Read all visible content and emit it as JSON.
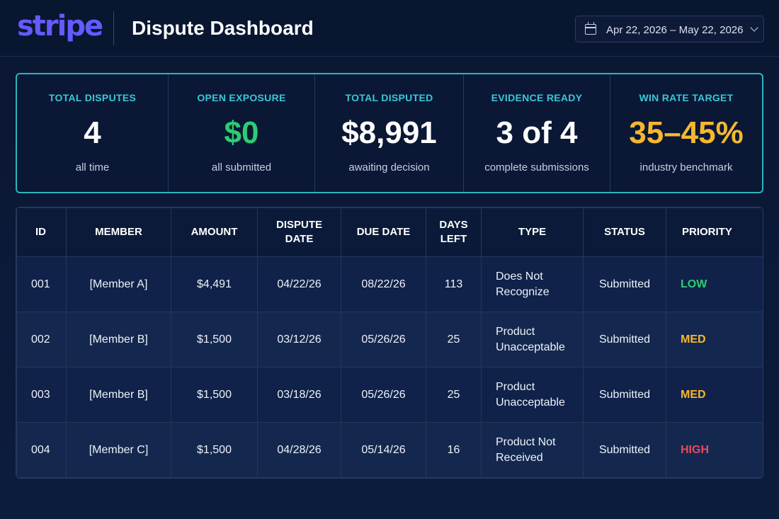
{
  "header": {
    "logo_text": "stripe",
    "title": "Dispute Dashboard",
    "date_range": "Apr 22, 2026 – May 22, 2026",
    "icons": [
      "calendar-icon",
      "chevron-down-icon"
    ]
  },
  "stats": [
    {
      "label": "TOTAL DISPUTES",
      "value": "4",
      "sub": "all time",
      "color": "#ffffff"
    },
    {
      "label": "OPEN EXPOSURE",
      "value": "$0",
      "sub": "all submitted",
      "color": "#2ecc71"
    },
    {
      "label": "TOTAL DISPUTED",
      "value": "$8,991",
      "sub": "awaiting decision",
      "color": "#ffffff"
    },
    {
      "label": "EVIDENCE READY",
      "value": "3 of 4",
      "sub": "complete submissions",
      "color": "#ffffff"
    },
    {
      "label": "WIN RATE TARGET",
      "value": "35–45%",
      "sub": "industry benchmark",
      "color": "#f5b82e"
    }
  ],
  "table": {
    "columns": [
      "ID",
      "MEMBER",
      "AMOUNT",
      "DISPUTE DATE",
      "DUE DATE",
      "DAYS LEFT",
      "TYPE",
      "STATUS",
      "PRIORITY"
    ],
    "rows": [
      {
        "id": "001",
        "member": "[Member A]",
        "amount": "$4,491",
        "dispute_date": "04/22/26",
        "due_date": "08/22/26",
        "days_left": "113",
        "type": "Does Not Recognize",
        "status": "Submitted",
        "priority": "LOW",
        "priority_color": "#2ecc71"
      },
      {
        "id": "002",
        "member": "[Member B]",
        "amount": "$1,500",
        "dispute_date": "03/12/26",
        "due_date": "05/26/26",
        "days_left": "25",
        "type": "Product Unacceptable",
        "status": "Submitted",
        "priority": "MED",
        "priority_color": "#f5b82e"
      },
      {
        "id": "003",
        "member": "[Member B]",
        "amount": "$1,500",
        "dispute_date": "03/18/26",
        "due_date": "05/26/26",
        "days_left": "25",
        "type": "Product Unacceptable",
        "status": "Submitted",
        "priority": "MED",
        "priority_color": "#f5b82e"
      },
      {
        "id": "004",
        "member": "[Member C]",
        "amount": "$1,500",
        "dispute_date": "04/28/26",
        "due_date": "05/14/26",
        "days_left": "16",
        "type": "Product Not Received",
        "status": "Submitted",
        "priority": "HIGH",
        "priority_color": "#e84a5f"
      }
    ]
  }
}
